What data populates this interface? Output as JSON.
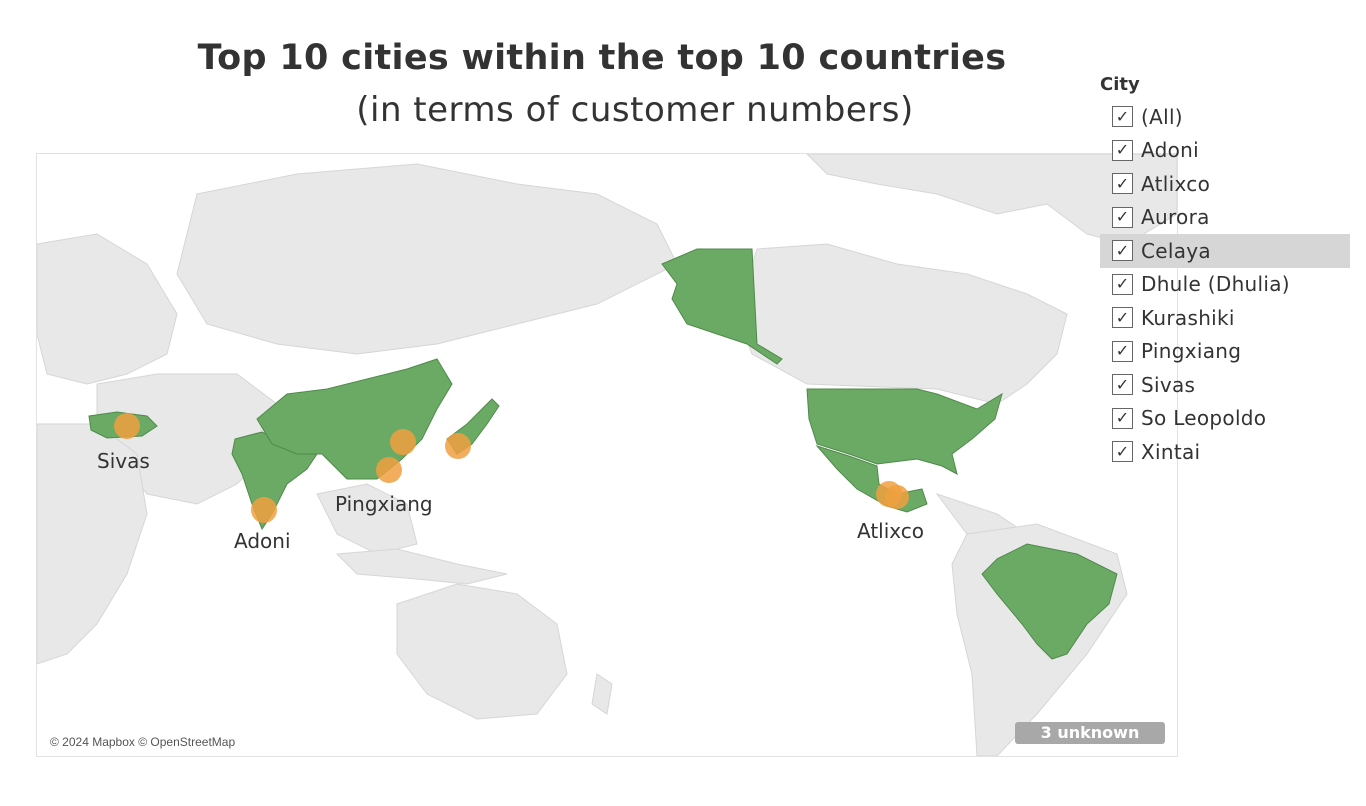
{
  "title": {
    "line1": "Top 10 cities within the top 10 countries",
    "line2": "(in terms of customer numbers)"
  },
  "map": {
    "attribution": "© 2024 Mapbox © OpenStreetMap",
    "unknown_badge": "3 unknown",
    "highlight_color": "#6aaa64",
    "city_color": "#f0a040",
    "land_color": "#e6e6e6",
    "highlighted_countries": [
      "Turkey",
      "India",
      "China",
      "Japan",
      "United States",
      "Mexico",
      "Brazil"
    ],
    "city_labels": [
      "Sivas",
      "Pingxiang",
      "Adoni",
      "Atlixco"
    ]
  },
  "filter": {
    "title": "City",
    "items": [
      {
        "label": "(All)",
        "checked": true
      },
      {
        "label": "Adoni",
        "checked": true
      },
      {
        "label": "Atlixco",
        "checked": true
      },
      {
        "label": "Aurora",
        "checked": true
      },
      {
        "label": "Celaya",
        "checked": true,
        "hovered": true
      },
      {
        "label": "Dhule (Dhulia)",
        "checked": true
      },
      {
        "label": "Kurashiki",
        "checked": true
      },
      {
        "label": "Pingxiang",
        "checked": true
      },
      {
        "label": "Sivas",
        "checked": true
      },
      {
        "label": "So Leopoldo",
        "checked": true
      },
      {
        "label": "Xintai",
        "checked": true
      }
    ]
  }
}
